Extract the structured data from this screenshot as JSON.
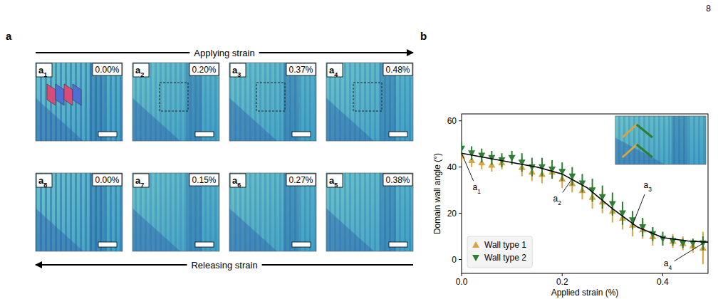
{
  "page_number": "8",
  "panel_a": {
    "label": "a",
    "top_arrow": "Applying strain",
    "bottom_arrow": "Releasing strain",
    "images": [
      {
        "label": "a1",
        "strain": "0.00%"
      },
      {
        "label": "a2",
        "strain": "0.20%"
      },
      {
        "label": "a3",
        "strain": "0.37%"
      },
      {
        "label": "a4",
        "strain": "0.48%"
      },
      {
        "label": "a5",
        "strain": "0.38%"
      },
      {
        "label": "a6",
        "strain": "0.27%"
      },
      {
        "label": "a7",
        "strain": "0.15%"
      },
      {
        "label": "a8",
        "strain": "0.00%"
      }
    ]
  },
  "chart_data": {
    "type": "scatter",
    "label": "b",
    "x_label": "Applied strain (%)",
    "y_label": "Domain wall angle (°)",
    "xlim": [
      0,
      0.49
    ],
    "ylim": [
      -6,
      63
    ],
    "xticks": [
      {
        "value": 0,
        "label": "0.0"
      },
      0.2,
      0.4
    ],
    "yticks": [
      0,
      20,
      40,
      60
    ],
    "legend": "lower left",
    "series": [
      {
        "name": "Wall type 1",
        "color": "#d9a441",
        "marker": "triangle-up",
        "x": [
          0,
          0.02,
          0.04,
          0.06,
          0.08,
          0.12,
          0.14,
          0.16,
          0.18,
          0.2,
          0.22,
          0.24,
          0.26,
          0.28,
          0.3,
          0.32,
          0.34,
          0.36,
          0.38,
          0.42,
          0.44,
          0.46,
          0.48
        ],
        "values": [
          45,
          43,
          42,
          41,
          42,
          40,
          38,
          37,
          38,
          35,
          33,
          30,
          27,
          25,
          21,
          18,
          15,
          13,
          10,
          8,
          7,
          6,
          5
        ],
        "errors": [
          3,
          3,
          3,
          3,
          3,
          4,
          4,
          4,
          3,
          4,
          4,
          4,
          5,
          5,
          5,
          5,
          5,
          4,
          4,
          3,
          3,
          3,
          7
        ]
      },
      {
        "name": "Wall type 2",
        "color": "#2e7d32",
        "marker": "triangle-down",
        "x": [
          0,
          0.02,
          0.04,
          0.06,
          0.08,
          0.1,
          0.12,
          0.14,
          0.16,
          0.18,
          0.2,
          0.22,
          0.24,
          0.26,
          0.28,
          0.3,
          0.32,
          0.34,
          0.36,
          0.38,
          0.4,
          0.42,
          0.44,
          0.46,
          0.48
        ],
        "values": [
          48,
          46,
          45,
          44,
          43,
          44,
          42,
          40,
          40,
          39,
          38,
          36,
          33,
          30,
          27,
          24,
          20,
          17,
          14,
          11,
          9,
          8,
          7,
          7,
          7
        ],
        "errors": [
          3,
          3,
          3,
          3,
          3,
          3,
          4,
          4,
          4,
          4,
          4,
          4,
          4,
          5,
          5,
          5,
          5,
          4,
          4,
          3,
          3,
          2,
          2,
          2,
          3
        ]
      },
      {
        "type": "line",
        "color": "#000000",
        "line_style": "solid",
        "x": [
          0,
          0.05,
          0.1,
          0.15,
          0.2,
          0.25,
          0.3,
          0.35,
          0.4,
          0.45,
          0.49
        ],
        "values": [
          46,
          44,
          42,
          40,
          37,
          31,
          22,
          14,
          9.5,
          8,
          7.5
        ]
      }
    ],
    "annotations": [
      {
        "text": "a1",
        "x": 0.03,
        "y": 30,
        "point": [
          0.0,
          46
        ]
      },
      {
        "text": "a2",
        "x": 0.19,
        "y": 25,
        "point": [
          0.22,
          35
        ]
      },
      {
        "text": "a3",
        "x": 0.37,
        "y": 31,
        "point": [
          0.34,
          15
        ]
      },
      {
        "text": "a4",
        "x": 0.41,
        "y": -3,
        "point": [
          0.48,
          7
        ]
      }
    ]
  }
}
